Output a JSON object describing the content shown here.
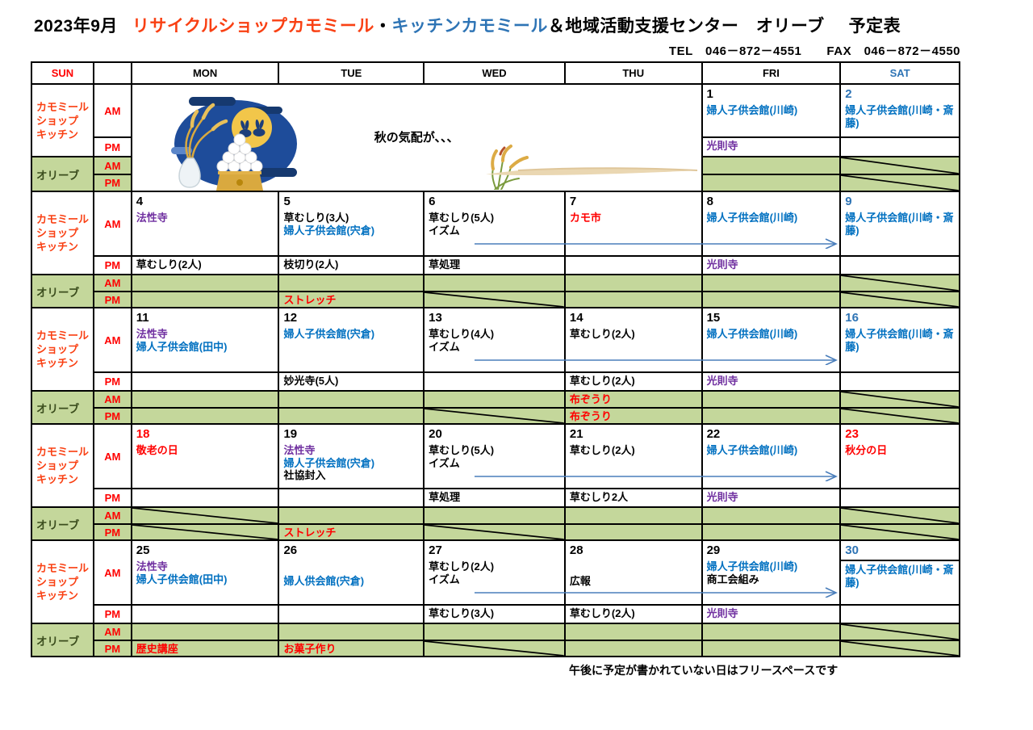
{
  "title": {
    "month": "2023年9月",
    "recycle": "リサイクルショップカモミール",
    "dot": "・",
    "kitchen": "キッチンカモミール",
    "org": "＆地域活動支援センター　オリーブ",
    "suffix": "予定表"
  },
  "contact": "TEL　046－872－4551　　FAX　046－872－4550",
  "footer": "午後に予定が書かれていない日はフリースペースです",
  "colors": {
    "black": "#000000",
    "blue": "#0070c0",
    "purple": "#7030a0",
    "red": "#ff0000",
    "sat_blue": "#2e74b5",
    "title_red": "#f94013",
    "green_bg": "#c4d79b",
    "olive_text": "#3b4d1d",
    "arrow_blue": "#4a7ebb",
    "moon_navy": "#1e4c9a"
  },
  "calendar": {
    "header": [
      "SUN",
      "",
      "MON",
      "TUE",
      "WED",
      "THU",
      "FRI",
      "SAT"
    ],
    "row_labels": {
      "shop_lines": [
        "カモミール",
        "ショップ",
        "キッチン"
      ],
      "olive": "オリーブ",
      "am": "AM",
      "pm": "PM"
    },
    "weeks": [
      {
        "arrow": false,
        "days": [
          {
            "banner": {
              "caption": "秋の気配が、、、",
              "illustrations": [
                "tsukimi-moon-rabbits-dango",
                "susuki-pampas-grass",
                "beige-brush-stroke"
              ]
            }
          },
          {
            "col": "fri",
            "num": "1",
            "num_color": "black",
            "am": [
              [
                "婦人子供会館(川崎)",
                "blue"
              ]
            ],
            "pm": [
              [
                "光則寺",
                "purple"
              ]
            ],
            "gam": {},
            "gpm": {}
          },
          {
            "col": "sat",
            "num": "2",
            "num_color": "sat_blue",
            "am": [
              [
                "婦人子供会館(川崎・斎藤)",
                "blue"
              ]
            ],
            "pm": [],
            "gam": {
              "diag": true
            },
            "gpm": {
              "diag": true
            }
          }
        ]
      },
      {
        "arrow": true,
        "days": [
          {
            "col": "mon",
            "num": "4",
            "num_color": "black",
            "am": [
              [
                "法性寺",
                "purple"
              ]
            ],
            "pm": [
              [
                "草むしり(2人)",
                "black"
              ]
            ],
            "gam": {},
            "gpm": {}
          },
          {
            "col": "tue",
            "num": "5",
            "num_color": "black",
            "am": [
              [
                "草むしり(3人)",
                "black"
              ],
              [
                "婦人子供会館(宍倉)",
                "blue"
              ]
            ],
            "pm": [
              [
                "枝切り(2人)",
                "black"
              ]
            ],
            "gam": {},
            "gpm": {
              "text": [
                "ストレッチ",
                "red"
              ]
            }
          },
          {
            "col": "wed",
            "num": "6",
            "num_color": "black",
            "am": [
              [
                "草むしり(5人)",
                "black"
              ],
              [
                "イズム",
                "black"
              ]
            ],
            "pm": [
              [
                "草処理",
                "black"
              ]
            ],
            "gam": {},
            "gpm": {
              "diag": true
            }
          },
          {
            "col": "thu",
            "num": "7",
            "num_color": "black",
            "am": [
              [
                "カモ市",
                "red"
              ]
            ],
            "pm": [],
            "gam": {},
            "gpm": {}
          },
          {
            "col": "fri",
            "num": "8",
            "num_color": "black",
            "am": [
              [
                "婦人子供会館(川崎)",
                "blue"
              ]
            ],
            "pm": [
              [
                "光則寺",
                "purple"
              ]
            ],
            "gam": {},
            "gpm": {}
          },
          {
            "col": "sat",
            "num": "9",
            "num_color": "sat_blue",
            "am": [
              [
                "婦人子供会館(川崎・斎藤)",
                "blue"
              ]
            ],
            "pm": [],
            "gam": {
              "diag": true
            },
            "gpm": {
              "diag": true
            }
          }
        ]
      },
      {
        "arrow": true,
        "days": [
          {
            "col": "mon",
            "num": "11",
            "num_color": "black",
            "am": [
              [
                "法性寺",
                "purple"
              ],
              [
                "婦人子供会館(田中)",
                "blue"
              ]
            ],
            "pm": [],
            "gam": {},
            "gpm": {}
          },
          {
            "col": "tue",
            "num": "12",
            "num_color": "black",
            "am": [
              [
                "婦人子供会館(宍倉)",
                "blue"
              ]
            ],
            "pm": [
              [
                "妙光寺(5人)",
                "black"
              ]
            ],
            "gam": {},
            "gpm": {}
          },
          {
            "col": "wed",
            "num": "13",
            "num_color": "black",
            "am": [
              [
                "草むしり(4人)",
                "black"
              ],
              [
                "イズム",
                "black"
              ]
            ],
            "pm": [],
            "gam": {},
            "gpm": {
              "diag": true
            }
          },
          {
            "col": "thu",
            "num": "14",
            "num_color": "black",
            "am": [
              [
                "草むしり(2人)",
                "black"
              ]
            ],
            "pm": [
              [
                "草むしり(2人)",
                "black"
              ]
            ],
            "gam": {
              "text": [
                "布ぞうり",
                "red"
              ]
            },
            "gpm": {
              "text": [
                "布ぞうり",
                "red"
              ]
            }
          },
          {
            "col": "fri",
            "num": "15",
            "num_color": "black",
            "am": [
              [
                "婦人子供会館(川崎)",
                "blue"
              ]
            ],
            "pm": [
              [
                "光則寺",
                "purple"
              ]
            ],
            "gam": {},
            "gpm": {}
          },
          {
            "col": "sat",
            "num": "16",
            "num_color": "sat_blue",
            "am": [
              [
                "婦人子供会館(川崎・斎藤)",
                "blue"
              ]
            ],
            "pm": [],
            "gam": {
              "diag": true
            },
            "gpm": {
              "diag": true
            }
          }
        ]
      },
      {
        "arrow": true,
        "days": [
          {
            "col": "mon",
            "num": "18",
            "num_color": "red",
            "am": [
              [
                "敬老の日",
                "red"
              ]
            ],
            "pm": [],
            "gam": {
              "diag": true
            },
            "gpm": {
              "diag": true
            }
          },
          {
            "col": "tue",
            "num": "19",
            "num_color": "black",
            "am": [
              [
                "法性寺",
                "purple"
              ],
              [
                "婦人子供会館(宍倉)",
                "blue"
              ],
              [
                "社協封入",
                "black"
              ]
            ],
            "pm": [],
            "gam": {},
            "gpm": {
              "text": [
                "ストレッチ",
                "red"
              ]
            }
          },
          {
            "col": "wed",
            "num": "20",
            "num_color": "black",
            "am": [
              [
                "草むしり(5人)",
                "black"
              ],
              [
                "イズム",
                "black"
              ]
            ],
            "pm": [
              [
                "草処理",
                "black"
              ]
            ],
            "gam": {},
            "gpm": {
              "diag": true
            }
          },
          {
            "col": "thu",
            "num": "21",
            "num_color": "black",
            "am": [
              [
                "草むしり(2人)",
                "black"
              ]
            ],
            "pm": [
              [
                "草むしり2人",
                "black"
              ]
            ],
            "gam": {},
            "gpm": {}
          },
          {
            "col": "fri",
            "num": "22",
            "num_color": "black",
            "am": [
              [
                "婦人子供会館(川崎)",
                "blue"
              ]
            ],
            "pm": [
              [
                "光則寺",
                "purple"
              ]
            ],
            "gam": {},
            "gpm": {}
          },
          {
            "col": "sat",
            "num": "23",
            "num_color": "red",
            "am": [
              [
                "秋分の日",
                "red"
              ]
            ],
            "pm": [],
            "gam": {
              "diag": true
            },
            "gpm": {
              "diag": true
            }
          }
        ]
      },
      {
        "arrow": true,
        "days": [
          {
            "col": "mon",
            "num": "25",
            "num_color": "black",
            "am": [
              [
                "法性寺",
                "purple"
              ],
              [
                "婦人子供会館(田中)",
                "blue"
              ]
            ],
            "pm": [],
            "gam": {},
            "gpm": {
              "text": [
                "歴史講座",
                "red"
              ]
            }
          },
          {
            "col": "tue",
            "num": "26",
            "num_color": "black",
            "am": [
              [
                "婦人供会館(宍倉)",
                "blue",
                "gap"
              ]
            ],
            "pm": [],
            "gam": {},
            "gpm": {
              "text": [
                "お菓子作り",
                "red"
              ]
            }
          },
          {
            "col": "wed",
            "num": "27",
            "num_color": "black",
            "am": [
              [
                "草むしり(2人)",
                "black"
              ],
              [
                "イズム",
                "black"
              ]
            ],
            "pm": [
              [
                "草むしり(3人)",
                "black"
              ]
            ],
            "gam": {},
            "gpm": {
              "diag": true
            }
          },
          {
            "col": "thu",
            "num": "28",
            "num_color": "black",
            "am": [
              [
                "広報",
                "black",
                "gap"
              ]
            ],
            "pm": [
              [
                "草むしり(2人)",
                "black"
              ]
            ],
            "gam": {},
            "gpm": {}
          },
          {
            "col": "fri",
            "num": "29",
            "num_color": "black",
            "am": [
              [
                "婦人子供会館(川崎)",
                "blue"
              ],
              [
                "商工会組み",
                "black"
              ]
            ],
            "pm": [
              [
                "光則寺",
                "purple"
              ]
            ],
            "gam": {},
            "gpm": {}
          },
          {
            "col": "sat",
            "num": "30",
            "num_color": "sat_blue",
            "num_border": true,
            "am": [
              [
                "婦人子供会館(川崎・斎藤)",
                "blue"
              ]
            ],
            "pm": [],
            "gam": {
              "diag": true
            },
            "gpm": {
              "diag": true
            }
          }
        ]
      }
    ]
  }
}
